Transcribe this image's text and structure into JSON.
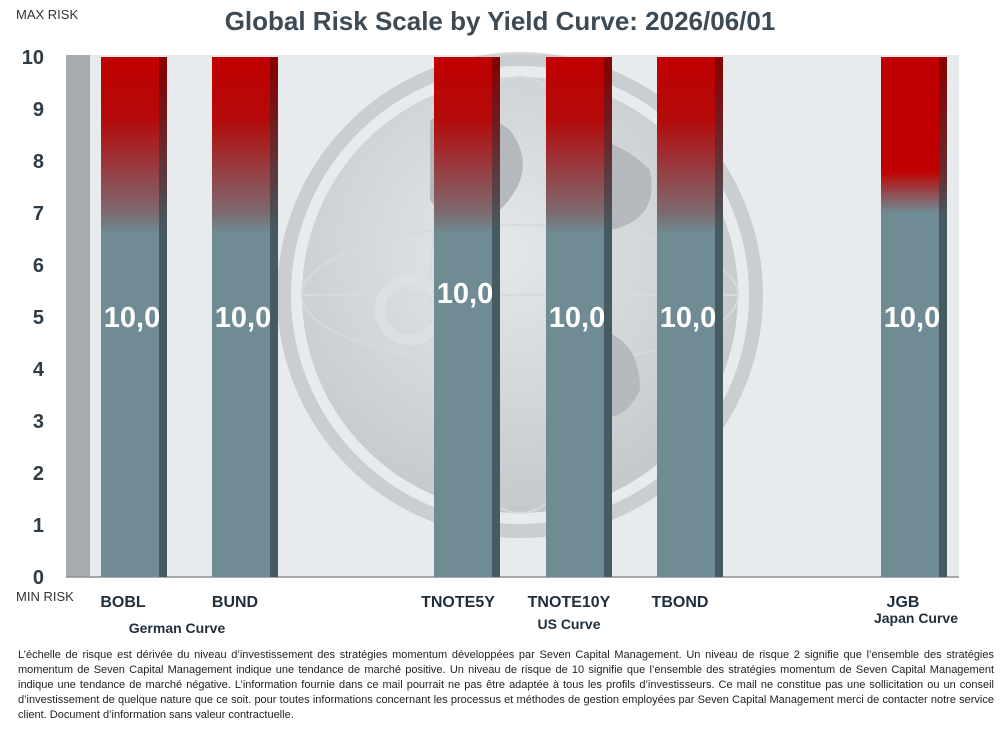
{
  "chart_data": {
    "type": "bar",
    "title": "Global Risk Scale by Yield Curve: 2026/06/01",
    "top_label": "MAX RISK",
    "bottom_label": "MIN RISK",
    "ylim": [
      0,
      10
    ],
    "yticks": [
      "0",
      "1",
      "2",
      "3",
      "4",
      "5",
      "6",
      "7",
      "8",
      "9",
      "10"
    ],
    "categories": [
      "BOBL",
      "BUND",
      "TNOTE5Y",
      "TNOTE10Y",
      "TBOND",
      "JGB"
    ],
    "values": [
      10,
      10,
      10,
      10,
      10,
      10
    ],
    "value_labels": [
      "10,0",
      "10,0",
      "10,0",
      "10,0",
      "10,0",
      "10,0"
    ],
    "groups": [
      "German Curve",
      "US Curve",
      "Japan Curve"
    ],
    "grid": false,
    "colors": {
      "low": "#6f8c94",
      "high": "#c00000",
      "background": "#e9ecee"
    }
  },
  "disclaimer": "L’échelle de risque est dérivée du niveau d’investissement des stratégies momentum développées par Seven Capital Management. Un niveau de risque 2 signifie que l’ensemble des stratégies momentum de Seven Capital Management indique une tendance de marché positive. Un niveau de risque de 10 signifie que l’ensemble des stratégies momentum de Seven Capital Management indique une tendance de marché négative. L’information fournie dans ce mail pourrait ne pas être adaptée à tous les profils d’investisseurs. Ce mail ne constitue pas une sollicitation ou un conseil d’investissement de quelque nature que ce soit. pour toutes informations concernant les processus et méthodes de gestion employées par Seven Capital Management merci de contacter notre service client. Document d’information sans valeur contractuelle."
}
